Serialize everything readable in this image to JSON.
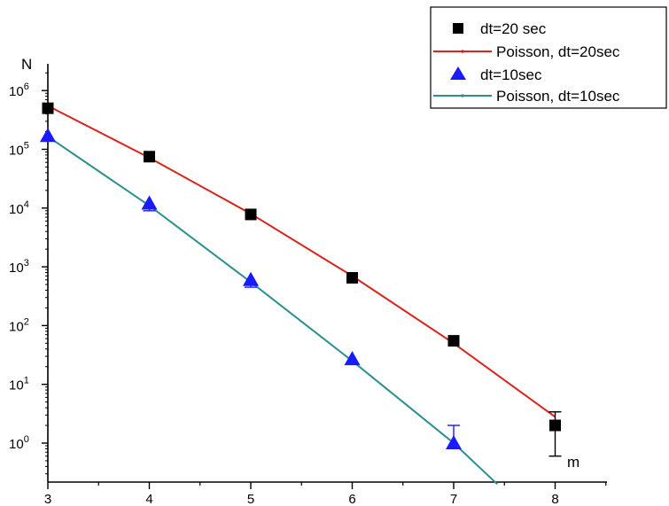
{
  "chart_data": {
    "type": "scatter",
    "title": "",
    "xlabel": "m",
    "ylabel": "N",
    "x_ticks": [
      "3",
      "4",
      "5",
      "6",
      "7",
      "8"
    ],
    "y_ticks": [
      {
        "base": "10",
        "exp": "0",
        "value": 1
      },
      {
        "base": "10",
        "exp": "1",
        "value": 10
      },
      {
        "base": "10",
        "exp": "2",
        "value": 100
      },
      {
        "base": "10",
        "exp": "3",
        "value": 1000
      },
      {
        "base": "10",
        "exp": "4",
        "value": 10000
      },
      {
        "base": "10",
        "exp": "5",
        "value": 100000
      },
      {
        "base": "10",
        "exp": "6",
        "value": 1000000
      }
    ],
    "xlim": [
      3,
      8.5
    ],
    "ylim": [
      0.2,
      1500000
    ],
    "y_scale": "log",
    "legend_position": "top-right",
    "series": [
      {
        "name": "dt=20 sec",
        "kind": "markers",
        "marker": "square",
        "color": "#000000",
        "x": [
          3,
          4,
          5,
          6,
          7,
          8
        ],
        "y": [
          500000,
          75000,
          7800,
          650,
          55,
          2
        ],
        "error_low": [
          null,
          null,
          null,
          null,
          null,
          0.6
        ],
        "error_high": [
          null,
          null,
          null,
          null,
          null,
          3.4
        ]
      },
      {
        "name": "Poisson, dt=20sec",
        "kind": "line",
        "color": "#d9241c",
        "x": [
          3,
          4,
          5,
          6,
          7,
          8
        ],
        "y": [
          550000,
          72000,
          8000,
          700,
          50,
          2.8
        ]
      },
      {
        "name": "dt=10sec",
        "kind": "markers",
        "marker": "triangle",
        "color": "#1a1aff",
        "x": [
          3,
          4,
          5,
          6,
          7
        ],
        "y": [
          170000,
          12000,
          600,
          27,
          1
        ],
        "error_low": [
          null,
          9000,
          450,
          22,
          null
        ],
        "error_high": [
          null,
          null,
          null,
          null,
          2
        ]
      },
      {
        "name": "Poisson, dt=10sec",
        "kind": "line",
        "color": "#2a8f8f",
        "x": [
          3,
          4,
          5,
          6,
          7,
          7.43
        ],
        "y": [
          165000,
          11000,
          550,
          25,
          1,
          0.2
        ]
      }
    ]
  }
}
